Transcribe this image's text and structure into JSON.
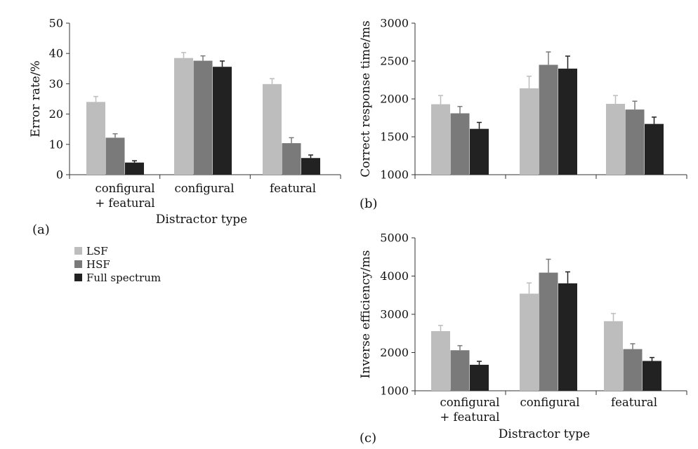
{
  "legend": [
    {
      "name": "LSF",
      "color": "#bdbdbd"
    },
    {
      "name": "HSF",
      "color": "#7a7a7a"
    },
    {
      "name": "Full spectrum",
      "color": "#222222"
    }
  ],
  "chart_data": [
    {
      "panel": "(a)",
      "type": "bar",
      "ylabel": "Error rate/%",
      "xlabel": "Distractor type",
      "ylim": [
        0,
        50
      ],
      "yticks": [
        "0",
        "10",
        "20",
        "30",
        "40",
        "50"
      ],
      "categories": [
        [
          "configural",
          "+ featural"
        ],
        [
          "configural"
        ],
        [
          "featural"
        ]
      ],
      "series": [
        {
          "name": "LSF",
          "values": [
            24.0,
            38.5,
            29.9
          ],
          "errors": [
            1.8,
            1.8,
            1.8
          ]
        },
        {
          "name": "HSF",
          "values": [
            12.2,
            37.6,
            10.4
          ],
          "errors": [
            1.3,
            1.6,
            1.8
          ]
        },
        {
          "name": "Full spectrum",
          "values": [
            4.0,
            35.6,
            5.5
          ],
          "errors": [
            0.6,
            1.9,
            1.0
          ]
        }
      ]
    },
    {
      "panel": "(b)",
      "type": "bar",
      "ylabel": "Correct response time/ms",
      "xlabel": "",
      "ylim": [
        1000,
        3000
      ],
      "yticks": [
        "1000",
        "1500",
        "2000",
        "2500",
        "3000"
      ],
      "categories": [
        [
          ""
        ],
        [
          ""
        ],
        [
          ""
        ]
      ],
      "series": [
        {
          "name": "LSF",
          "values": [
            1930,
            2140,
            1935
          ],
          "errors": [
            115,
            160,
            110
          ]
        },
        {
          "name": "HSF",
          "values": [
            1810,
            2450,
            1860
          ],
          "errors": [
            90,
            170,
            110
          ]
        },
        {
          "name": "Full spectrum",
          "values": [
            1605,
            2400,
            1670
          ],
          "errors": [
            85,
            165,
            90
          ]
        }
      ]
    },
    {
      "panel": "(c)",
      "type": "bar",
      "ylabel": "Inverse efficiency/ms",
      "xlabel": "Distractor type",
      "ylim": [
        1000,
        5000
      ],
      "yticks": [
        "1000",
        "2000",
        "3000",
        "4000",
        "5000"
      ],
      "categories": [
        [
          "configural",
          "+ featural"
        ],
        [
          "configural"
        ],
        [
          "featural"
        ]
      ],
      "series": [
        {
          "name": "LSF",
          "values": [
            2560,
            3540,
            2820
          ],
          "errors": [
            150,
            280,
            200
          ]
        },
        {
          "name": "HSF",
          "values": [
            2060,
            4090,
            2090
          ],
          "errors": [
            120,
            350,
            140
          ]
        },
        {
          "name": "Full spectrum",
          "values": [
            1680,
            3810,
            1780
          ],
          "errors": [
            90,
            300,
            90
          ]
        }
      ]
    }
  ]
}
